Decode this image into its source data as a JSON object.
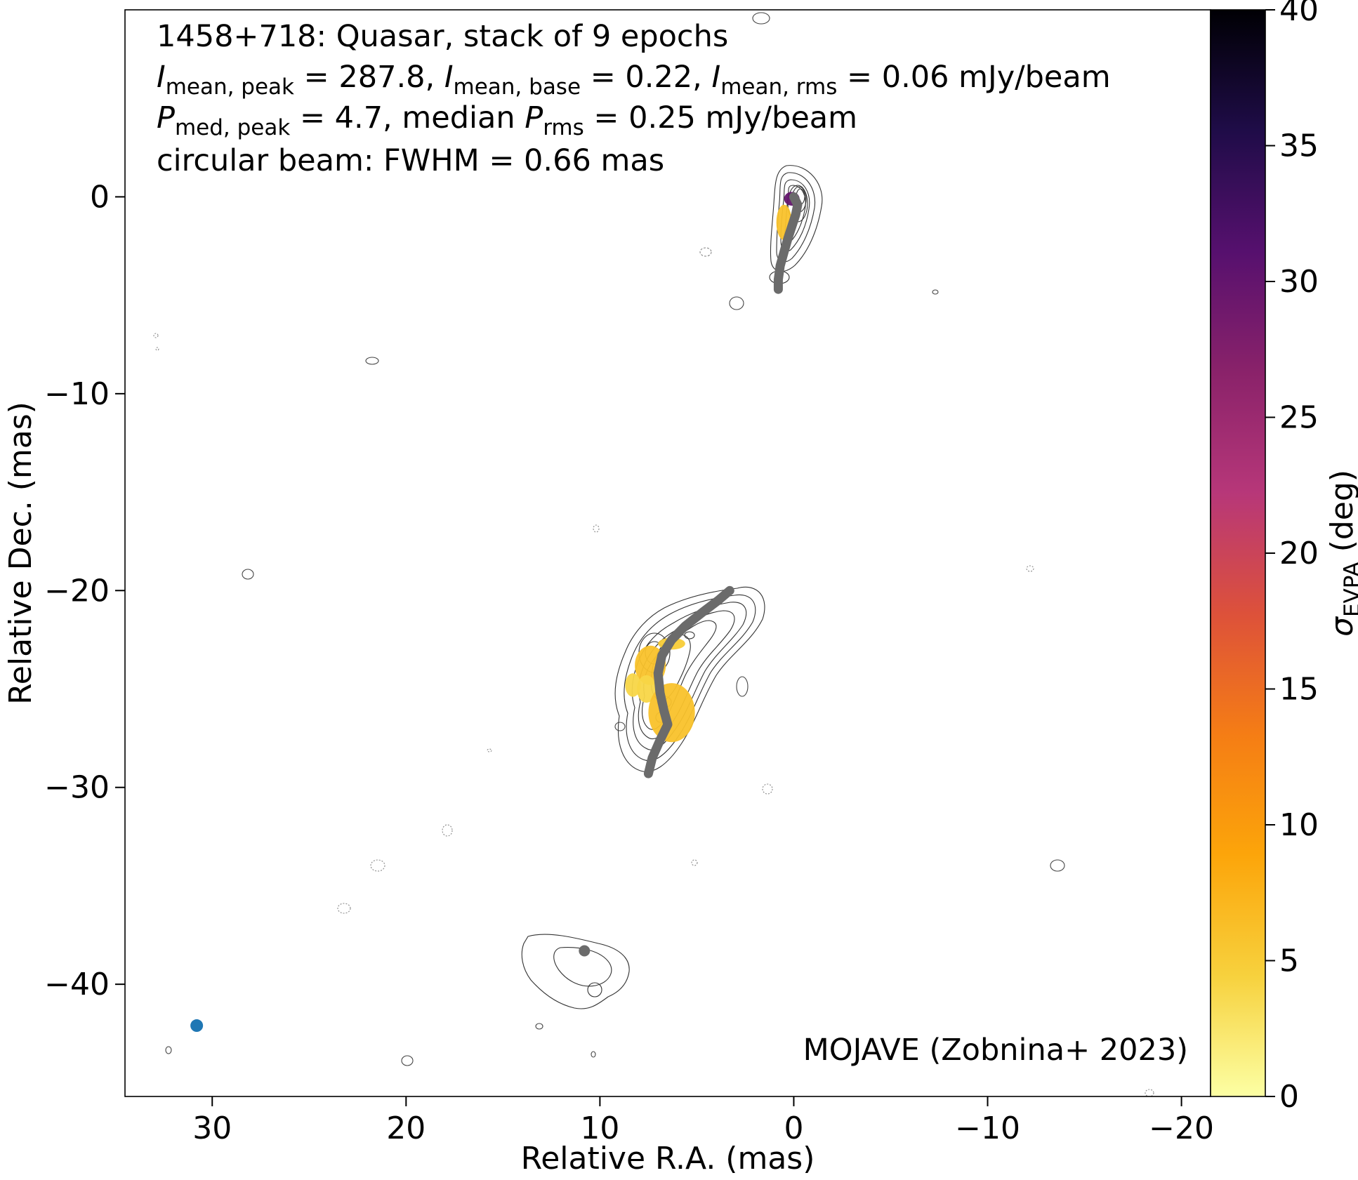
{
  "chart_data": {
    "type": "heatmap",
    "title_lines": [
      "1458+718: Quasar, stack of 9 epochs",
      "I_mean,peak = 287.8, I_mean,base = 0.22, I_mean,rms = 0.06 mJy/beam",
      "P_med,peak = 4.7, median P_rms = 0.25 mJy/beam",
      "circular beam: FWHM = 0.66 mas"
    ],
    "title": {
      "line1": "1458+718: Quasar, stack of 9 epochs",
      "line2": {
        "i1": "I",
        "i1_sub": "mean, peak",
        "i1_val": " = 287.8, ",
        "i2": "I",
        "i2_sub": "mean, base",
        "i2_val": " = 0.22, ",
        "i3": "I",
        "i3_sub": "mean, rms",
        "i3_val": " = 0.06 mJy/beam"
      },
      "line3": {
        "p1": "P",
        "p1_sub": "med, peak",
        "p1_val": " = 4.7, median ",
        "p2": "P",
        "p2_sub": "rms",
        "p2_val": " = 0.25 mJy/beam"
      },
      "line4": "circular beam: FWHM = 0.66 mas"
    },
    "credit": "MOJAVE (Zobnina+ 2023)",
    "xlabel": "Relative R.A. (mas)",
    "ylabel": "Relative Dec. (mas)",
    "xlim": [
      34.5,
      -21.5
    ],
    "ylim": [
      -45.7,
      9.5
    ],
    "xticks": [
      30,
      20,
      10,
      0,
      -10,
      -20
    ],
    "xtick_labels": [
      "30",
      "20",
      "10",
      "0",
      "−10",
      "−20"
    ],
    "yticks": [
      0,
      -10,
      -20,
      -30,
      -40
    ],
    "ytick_labels": [
      "0",
      "−10",
      "−20",
      "−30",
      "−40"
    ],
    "colorbar": {
      "label_main": "σ",
      "label_sub": "EVPA",
      "label_unit": " (deg)",
      "range": [
        0,
        40
      ],
      "ticks": [
        0,
        5,
        10,
        15,
        20,
        25,
        30,
        35,
        40
      ],
      "tick_labels": [
        "0",
        "5",
        "10",
        "15",
        "20",
        "25",
        "30",
        "35",
        "40"
      ],
      "colormap": "inferno_r",
      "colors": [
        "#fcffa4",
        "#f7d13d",
        "#fca50a",
        "#f57d15",
        "#dd513a",
        "#b73779",
        "#8a226a",
        "#56106e",
        "#1f0c48",
        "#000004"
      ]
    },
    "beam": {
      "x": 30.8,
      "y": -42.1,
      "color": "#1f77b4"
    },
    "ridge_line": {
      "color": "#6b6b6b",
      "core_jet": [
        [
          0.0,
          0.0
        ],
        [
          -0.2,
          -0.4
        ],
        [
          -0.1,
          -0.9
        ],
        [
          0.1,
          -1.5
        ],
        [
          0.3,
          -2.1
        ],
        [
          0.5,
          -2.8
        ],
        [
          0.7,
          -3.5
        ],
        [
          0.8,
          -4.2
        ],
        [
          0.8,
          -4.7
        ]
      ],
      "main_jet": [
        [
          3.3,
          -20.0
        ],
        [
          3.9,
          -20.5
        ],
        [
          4.7,
          -21.1
        ],
        [
          5.6,
          -21.8
        ],
        [
          6.3,
          -22.5
        ],
        [
          6.8,
          -23.3
        ],
        [
          7.0,
          -24.2
        ],
        [
          6.9,
          -25.2
        ],
        [
          6.7,
          -26.1
        ],
        [
          6.5,
          -26.8
        ],
        [
          6.9,
          -27.6
        ],
        [
          7.3,
          -28.5
        ],
        [
          7.5,
          -29.3
        ]
      ],
      "outer_knot": [
        10.8,
        -38.3
      ]
    },
    "evpa_regions": [
      {
        "x": 0.5,
        "y": -1.3,
        "rx": 0.4,
        "ry": 0.9,
        "value": 6
      },
      {
        "x": 0.1,
        "y": -0.1,
        "rx": 0.4,
        "ry": 0.35,
        "value": 30
      },
      {
        "x": 7.4,
        "y": -23.8,
        "rx": 0.8,
        "ry": 1.0,
        "value": 6
      },
      {
        "x": 7.6,
        "y": -25.0,
        "rx": 0.5,
        "ry": 0.7,
        "value": 4
      },
      {
        "x": 6.3,
        "y": -26.2,
        "rx": 1.2,
        "ry": 1.5,
        "value": 6
      },
      {
        "x": 6.3,
        "y": -22.7,
        "rx": 0.7,
        "ry": 0.3,
        "value": 5
      },
      {
        "x": 8.3,
        "y": -24.8,
        "rx": 0.4,
        "ry": 0.6,
        "value": 4
      }
    ]
  }
}
